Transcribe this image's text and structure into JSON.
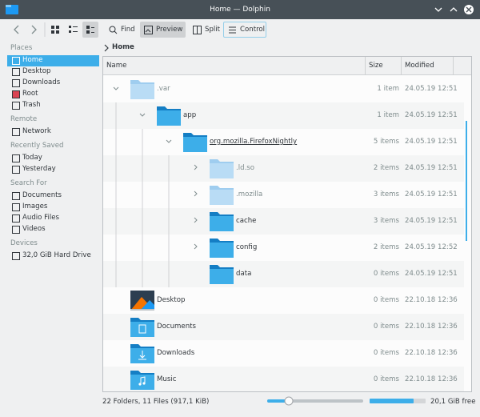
{
  "window": {
    "title": "Home — Dolphin"
  },
  "toolbar": {
    "buttons": [
      "Find",
      "Preview",
      "Split",
      "Control"
    ]
  },
  "sidebar": {
    "sections": [
      {
        "title": "Places",
        "items": [
          "Home",
          "Desktop",
          "Downloads",
          "Root",
          "Trash"
        ]
      },
      {
        "title": "Remote",
        "items": [
          "Network"
        ]
      },
      {
        "title": "Recently Saved",
        "items": [
          "Today",
          "Yesterday"
        ]
      },
      {
        "title": "Search For",
        "items": [
          "Documents",
          "Images",
          "Audio Files",
          "Videos"
        ]
      },
      {
        "title": "Devices",
        "items": [
          "32,0 GiB Hard Drive"
        ]
      }
    ]
  },
  "breadcrumb": "Home",
  "columns": [
    "Name",
    "Size",
    "Modified"
  ],
  "rows": [
    {
      "name": ".var",
      "size": "1 item",
      "modified": "24.05.19 12:51"
    },
    {
      "name": "app",
      "size": "1 item",
      "modified": "24.05.19 12:51"
    },
    {
      "name": "org.mozilla.FirefoxNightly",
      "size": "5 items",
      "modified": "24.05.19 12:51"
    },
    {
      "name": ".ld.so",
      "size": "2 items",
      "modified": "24.05.19 12:51"
    },
    {
      "name": ".mozilla",
      "size": "3 items",
      "modified": "24.05.19 12:51"
    },
    {
      "name": "cache",
      "size": "3 items",
      "modified": "24.05.19 12:51"
    },
    {
      "name": "config",
      "size": "2 items",
      "modified": "24.05.19 12:52"
    },
    {
      "name": "data",
      "size": "0 items",
      "modified": "24.05.19 12:51"
    },
    {
      "name": "Desktop",
      "size": "0 items",
      "modified": "22.10.18 12:36"
    },
    {
      "name": "Documents",
      "size": "0 items",
      "modified": "22.10.18 12:36"
    },
    {
      "name": "Downloads",
      "size": "0 items",
      "modified": "22.10.18 12:36"
    },
    {
      "name": "Music",
      "size": "0 items",
      "modified": "22.10.18 12:36"
    }
  ],
  "status": {
    "summary": "22 Folders, 11 Files (917,1 KiB)",
    "free": "20,1 GiB free"
  }
}
